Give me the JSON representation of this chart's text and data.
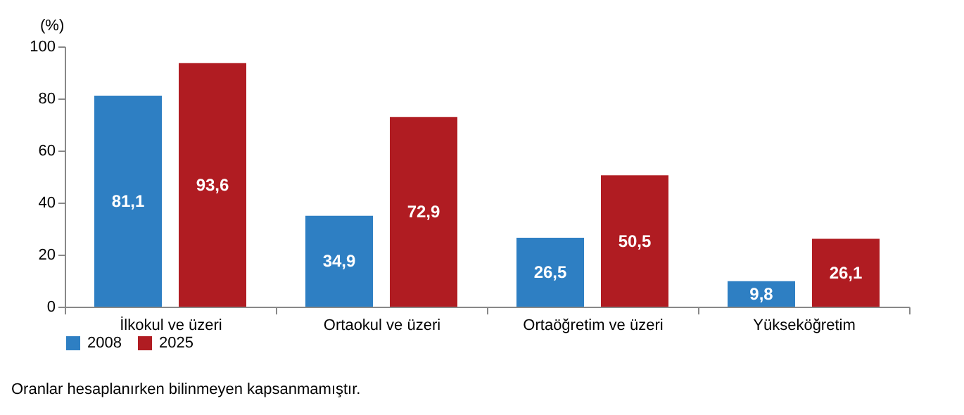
{
  "chart_data": {
    "type": "bar",
    "ylabel": "(%)",
    "categories": [
      "İlkokul ve üzeri",
      "Ortaokul ve üzeri",
      "Ortaöğretim ve üzeri",
      "Yükseköğretim"
    ],
    "series": [
      {
        "name": "2008",
        "color": "#2e7fc3",
        "values": [
          81.1,
          34.9,
          26.5,
          9.8
        ],
        "value_labels": [
          "81,1",
          "34,9",
          "26,5",
          "9,8"
        ]
      },
      {
        "name": "2025",
        "color": "#b01c22",
        "values": [
          93.6,
          72.9,
          50.5,
          26.1
        ],
        "value_labels": [
          "93,6",
          "72,9",
          "50,5",
          "26,1"
        ]
      }
    ],
    "ylim": [
      0,
      100
    ],
    "yticks": [
      0,
      20,
      40,
      60,
      80,
      100
    ],
    "grid": false,
    "legend": "bottom",
    "annotations": [
      "Oranlar hesaplanırken bilinmeyen kapsanmamıştır."
    ]
  }
}
